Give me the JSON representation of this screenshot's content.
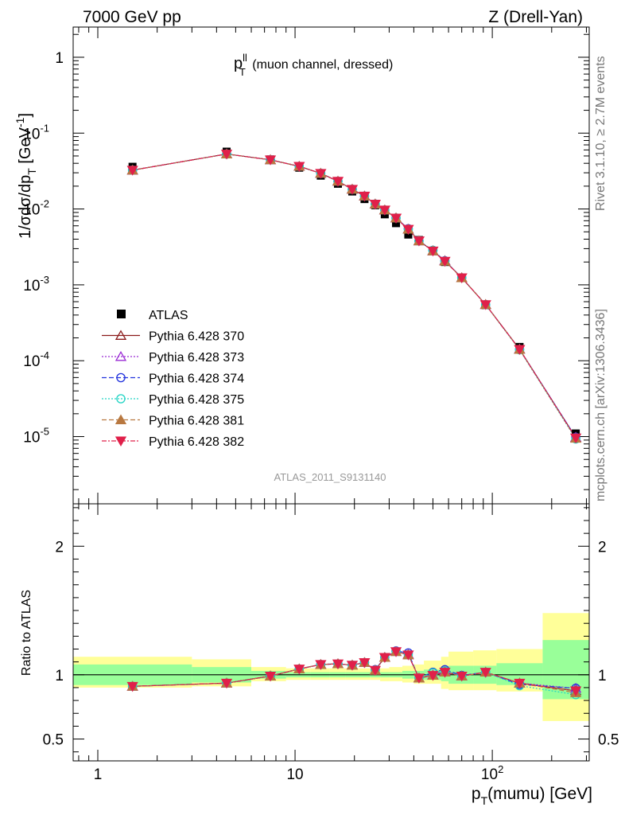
{
  "header": {
    "left": "7000 GeV pp",
    "right": "Z (Drell-Yan)"
  },
  "side_labels": {
    "rivet": "Rivet 3.1.10, ≥ 2.7M events",
    "mcplots": "mcplots.cern.ch [arXiv:1306.3436]"
  },
  "chart_data": [
    {
      "type": "scatter",
      "title": "p_T^ll (muon channel, dressed)",
      "title_main": "p",
      "title_sup": "ll",
      "title_sub": "T",
      "title_rest": " (muon channel, dressed)",
      "analysis_label": "ATLAS_2011_S9131140",
      "ylabel": "1/σdσ/dp_T [GeV^-1]",
      "ylabel_parts": {
        "a": "1/σdσ/dp",
        "sub": "T",
        "b": " [GeV",
        "sup": "-1",
        "c": "]"
      },
      "xlabel": "p_T(mumu) [GeV]",
      "xlabel_parts": {
        "a": "p",
        "sub": "T",
        "b": "(mumu) [GeV]"
      },
      "xscale": "log",
      "yscale": "log",
      "xlim": [
        0.75,
        310
      ],
      "ylim": [
        1.3e-06,
        2.5
      ],
      "x_ticks": [
        {
          "value": 1,
          "label": "1"
        },
        {
          "value": 10,
          "label": "10"
        },
        {
          "value": 100,
          "label": "10",
          "sup": "2"
        }
      ],
      "y_ticks": [
        {
          "value": 1,
          "base": "1",
          "sup": ""
        },
        {
          "value": 0.1,
          "base": "10",
          "sup": "-1"
        },
        {
          "value": 0.01,
          "base": "10",
          "sup": "-2"
        },
        {
          "value": 0.001,
          "base": "10",
          "sup": "-3"
        },
        {
          "value": 0.0001,
          "base": "10",
          "sup": "-4"
        },
        {
          "value": 1e-05,
          "base": "10",
          "sup": "-5"
        }
      ],
      "legend_position": "left",
      "x": [
        1.5,
        4.5,
        7.5,
        10.5,
        13.5,
        16.5,
        19.5,
        22.5,
        25.5,
        28.5,
        32.5,
        37.5,
        42.5,
        50,
        57.5,
        70,
        92.5,
        137.5,
        265
      ],
      "data": {
        "name": "ATLAS",
        "y": [
          0.036,
          0.057,
          0.045,
          0.035,
          0.0275,
          0.0215,
          0.017,
          0.0135,
          0.0112,
          0.0085,
          0.0065,
          0.0046,
          0.0039,
          0.0028,
          0.002,
          0.00125,
          0.00054,
          0.000152,
          1.1e-05
        ]
      },
      "series": [
        {
          "name": "Pythia 6.428 370",
          "color": "#8b1a1a",
          "dash": "",
          "marker": "triangle-up-open",
          "y": [
            0.0325,
            0.053,
            0.0445,
            0.0365,
            0.0295,
            0.0232,
            0.0182,
            0.0148,
            0.0116,
            0.0097,
            0.0076,
            0.0054,
            0.0038,
            0.0028,
            0.00208,
            0.00124,
            0.00055,
            0.000142,
            9.7e-06
          ]
        },
        {
          "name": "Pythia 6.428 373",
          "color": "#9a2ad4",
          "dash": "2,2",
          "marker": "triangle-up-open",
          "y": [
            0.0325,
            0.053,
            0.0445,
            0.0365,
            0.0295,
            0.0232,
            0.0182,
            0.0148,
            0.0116,
            0.0097,
            0.0076,
            0.0054,
            0.0038,
            0.0028,
            0.00208,
            0.00124,
            0.00055,
            0.000142,
            9.8e-06
          ]
        },
        {
          "name": "Pythia 6.428 374",
          "color": "#2233dd",
          "dash": "6,3",
          "marker": "circle-open",
          "y": [
            0.0325,
            0.053,
            0.0445,
            0.0365,
            0.0295,
            0.0232,
            0.0182,
            0.0148,
            0.0116,
            0.0097,
            0.0076,
            0.0055,
            0.0038,
            0.00285,
            0.00208,
            0.00124,
            0.00055,
            0.000141,
            9.8e-06
          ]
        },
        {
          "name": "Pythia 6.428 375",
          "color": "#22d4c4",
          "dash": "2,2",
          "marker": "circle-open",
          "y": [
            0.0325,
            0.053,
            0.0445,
            0.0365,
            0.0295,
            0.0232,
            0.0182,
            0.0148,
            0.0116,
            0.0097,
            0.0076,
            0.0054,
            0.0038,
            0.00285,
            0.00205,
            0.00124,
            0.00055,
            0.000139,
            9.3e-06
          ]
        },
        {
          "name": "Pythia 6.428 381",
          "color": "#b87840",
          "dash": "6,3",
          "marker": "triangle-up-filled",
          "y": [
            0.0325,
            0.053,
            0.0445,
            0.0365,
            0.0295,
            0.0232,
            0.0182,
            0.0148,
            0.0116,
            0.0097,
            0.0076,
            0.0054,
            0.0038,
            0.0028,
            0.00205,
            0.00124,
            0.00055,
            0.000141,
            9.5e-06
          ]
        },
        {
          "name": "Pythia 6.428 382",
          "color": "#e0204a",
          "dash": "6,2,2,2",
          "marker": "triangle-down-filled",
          "y": [
            0.0325,
            0.053,
            0.0445,
            0.0365,
            0.0295,
            0.0232,
            0.0182,
            0.0148,
            0.0116,
            0.0097,
            0.0076,
            0.0054,
            0.0038,
            0.0028,
            0.00205,
            0.00124,
            0.00055,
            0.000141,
            9.6e-06
          ]
        }
      ]
    },
    {
      "type": "line",
      "ylabel": "Ratio to ATLAS",
      "xscale": "log",
      "xlim": [
        0.75,
        310
      ],
      "ylim": [
        0.33,
        2.33
      ],
      "y_ticks": [
        {
          "value": 0.5,
          "label": "0.5"
        },
        {
          "value": 1,
          "label": "1"
        },
        {
          "value": 2,
          "label": "2"
        }
      ],
      "bands": {
        "bins": [
          0.75,
          3,
          6,
          9,
          12,
          15,
          18,
          21,
          24,
          27,
          30,
          35,
          40,
          45,
          55,
          60,
          80,
          105,
          180,
          310
        ],
        "stat_color": "#99ff99",
        "total_color": "#ffff99",
        "stat_lo": [
          0.92,
          0.94,
          0.97,
          0.98,
          0.98,
          0.98,
          0.98,
          0.98,
          0.98,
          0.98,
          0.98,
          0.97,
          0.97,
          0.96,
          0.95,
          0.93,
          0.93,
          0.92,
          0.81
        ],
        "stat_hi": [
          1.08,
          1.06,
          1.03,
          1.02,
          1.02,
          1.02,
          1.02,
          1.02,
          1.02,
          1.02,
          1.02,
          1.03,
          1.03,
          1.04,
          1.05,
          1.07,
          1.07,
          1.09,
          1.27
        ],
        "total_lo": [
          0.9,
          0.91,
          0.95,
          0.96,
          0.96,
          0.96,
          0.96,
          0.96,
          0.96,
          0.95,
          0.95,
          0.94,
          0.93,
          0.93,
          0.89,
          0.88,
          0.88,
          0.87,
          0.64
        ],
        "total_hi": [
          1.14,
          1.12,
          1.06,
          1.05,
          1.05,
          1.05,
          1.05,
          1.05,
          1.05,
          1.05,
          1.06,
          1.07,
          1.08,
          1.11,
          1.14,
          1.18,
          1.19,
          1.2,
          1.48
        ]
      },
      "series": [
        {
          "name": "Pythia 6.428 370",
          "y": [
            0.91,
            0.935,
            0.99,
            1.045,
            1.08,
            1.085,
            1.075,
            1.095,
            1.035,
            1.135,
            1.18,
            1.155,
            0.975,
            0.995,
            1.025,
            0.99,
            1.02,
            0.935,
            0.875
          ]
        },
        {
          "name": "Pythia 6.428 373",
          "y": [
            0.91,
            0.935,
            0.99,
            1.045,
            1.08,
            1.085,
            1.075,
            1.095,
            1.035,
            1.135,
            1.18,
            1.16,
            0.975,
            1.0,
            1.03,
            0.99,
            1.02,
            0.935,
            0.895
          ]
        },
        {
          "name": "Pythia 6.428 374",
          "y": [
            0.91,
            0.935,
            0.99,
            1.045,
            1.08,
            1.085,
            1.075,
            1.095,
            1.04,
            1.135,
            1.185,
            1.17,
            0.975,
            1.02,
            1.04,
            0.995,
            1.02,
            0.925,
            0.895
          ]
        },
        {
          "name": "Pythia 6.428 375",
          "y": [
            0.91,
            0.935,
            0.99,
            1.045,
            1.08,
            1.085,
            1.075,
            1.095,
            1.035,
            1.135,
            1.18,
            1.155,
            0.975,
            1.015,
            1.03,
            0.99,
            1.02,
            0.915,
            0.845
          ]
        },
        {
          "name": "Pythia 6.428 381",
          "y": [
            0.91,
            0.935,
            0.99,
            1.045,
            1.08,
            1.085,
            1.075,
            1.095,
            1.035,
            1.135,
            1.18,
            1.155,
            0.975,
            0.995,
            1.02,
            0.99,
            1.02,
            0.935,
            0.86
          ]
        },
        {
          "name": "Pythia 6.428 382",
          "y": [
            0.91,
            0.935,
            0.99,
            1.045,
            1.08,
            1.085,
            1.075,
            1.095,
            1.035,
            1.135,
            1.18,
            1.155,
            0.975,
            0.995,
            1.02,
            0.99,
            1.02,
            0.935,
            0.875
          ]
        }
      ]
    }
  ]
}
